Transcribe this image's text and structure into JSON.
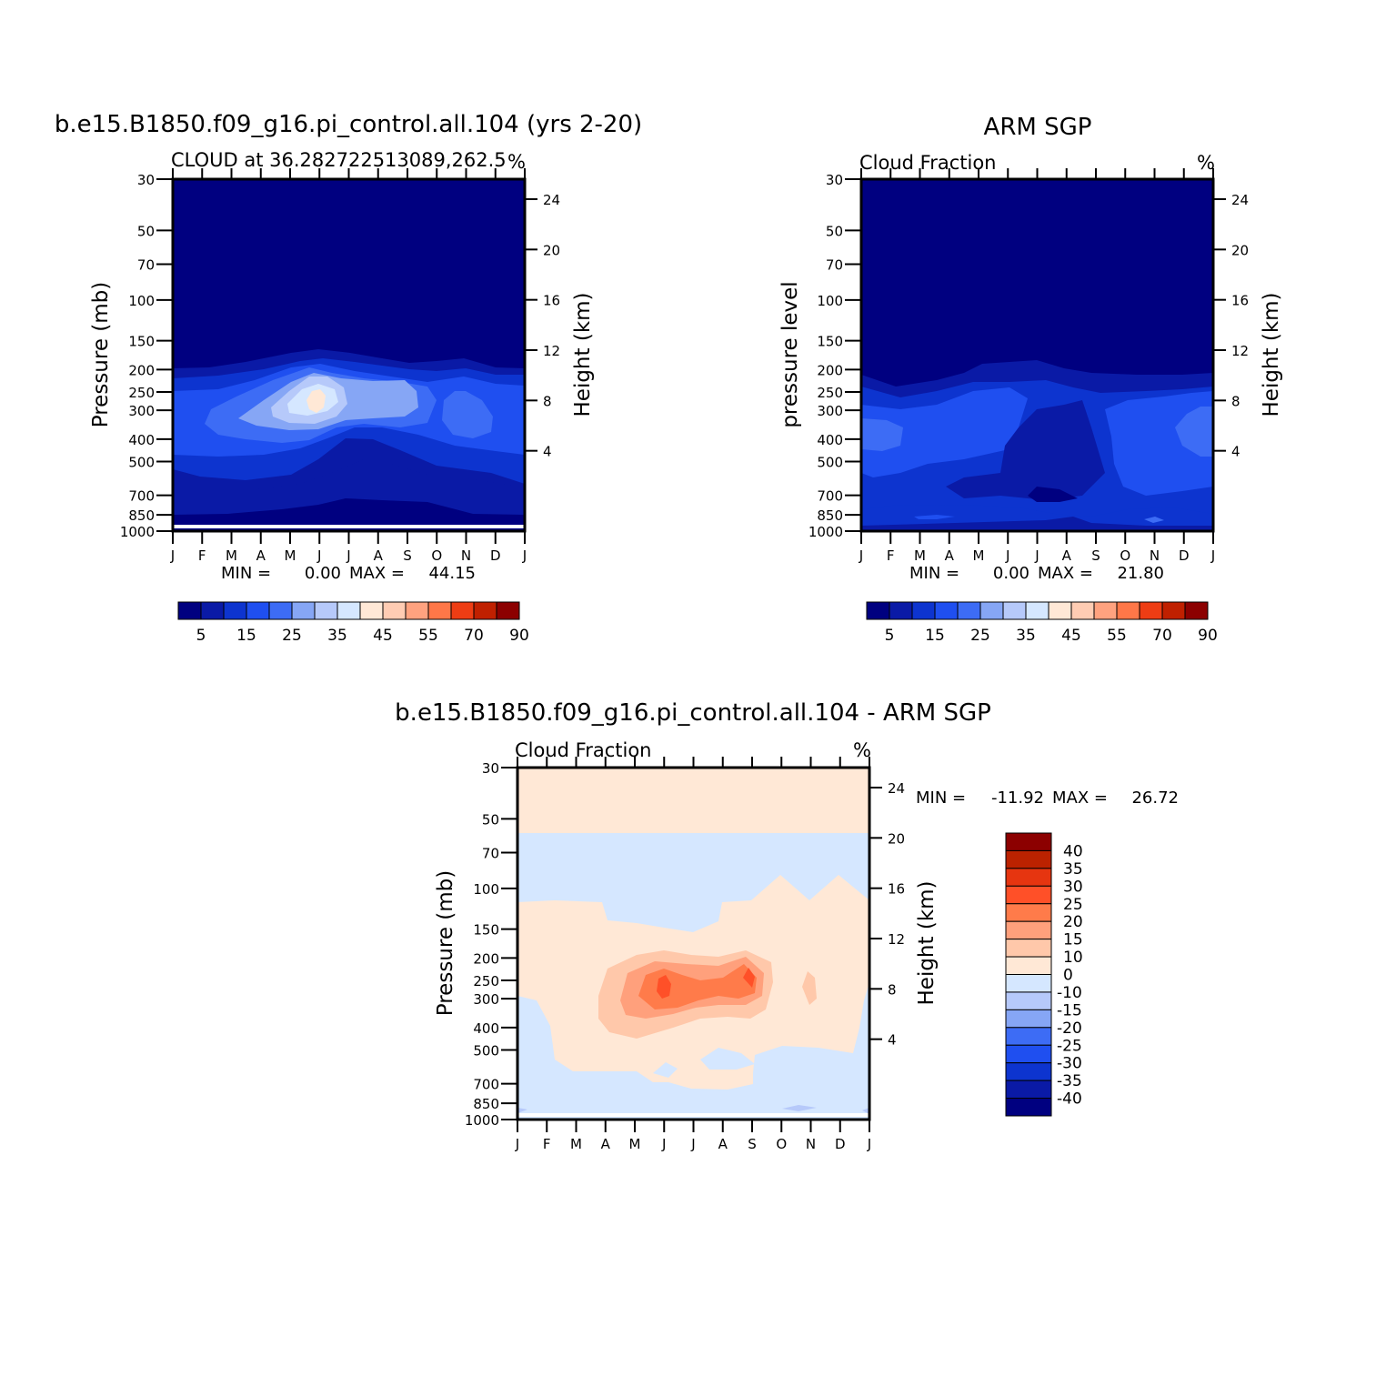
{
  "colors": {
    "model_levels": [
      "#000080",
      "#0a1aa6",
      "#0d34cf",
      "#1f4ff0",
      "#3d6cf5",
      "#86a6f5",
      "#b6c9fa",
      "#d5e7ff",
      "#ffe8d6",
      "#ffccb3",
      "#ffa27f",
      "#ff7748",
      "#ee3d14",
      "#c02000",
      "#8c0000"
    ],
    "diff_levels": [
      "#8c0000",
      "#bb2200",
      "#e63510",
      "#ff5028",
      "#ff7b4a",
      "#ffa07c",
      "#ffc8aa",
      "#ffe8d6",
      "#d5e7ff",
      "#b6c9fa",
      "#86a6f5",
      "#3d6cf5",
      "#1f4ff0",
      "#0d34cf",
      "#0a1aa6",
      "#000080"
    ]
  },
  "chart_data": [
    {
      "type": "contour",
      "title": "b.e15.B1850.f09_g16.pi_control.all.104 (yrs 2-20)",
      "subtitle_left": "CLOUD at 36.282722513089,262.5",
      "subtitle_right": "%",
      "ylabel": "Pressure (mb)",
      "ylabel_right": "Height (km)",
      "x_ticks": [
        "J",
        "F",
        "M",
        "A",
        "M",
        "J",
        "J",
        "A",
        "S",
        "O",
        "N",
        "D",
        "J"
      ],
      "y_ticks": [
        "30",
        "50",
        "70",
        "100",
        "150",
        "200",
        "250",
        "300",
        "400",
        "500",
        "700",
        "850",
        "1000"
      ],
      "y_ticks_right": [
        "24",
        "20",
        "16",
        "12",
        "8",
        "4"
      ],
      "stats": {
        "min_label": "MIN =",
        "min": "0.00",
        "max_label": "MAX =",
        "max": "44.15"
      },
      "colorbar_labels": [
        "5",
        "15",
        "25",
        "35",
        "45",
        "55",
        "70",
        "90"
      ],
      "levels_shown": {
        "background": "<5",
        "peak": "40-45",
        "peak_month": "J",
        "peak_pressure_mb": 250
      }
    },
    {
      "type": "contour",
      "title": "ARM SGP",
      "subtitle_left": "Cloud Fraction",
      "subtitle_right": "%",
      "ylabel": "pressure level",
      "ylabel_right": "Height (km)",
      "x_ticks": [
        "J",
        "F",
        "M",
        "A",
        "M",
        "J",
        "J",
        "A",
        "S",
        "O",
        "N",
        "D",
        "J"
      ],
      "y_ticks": [
        "30",
        "50",
        "70",
        "100",
        "150",
        "200",
        "250",
        "300",
        "400",
        "500",
        "700",
        "850",
        "1000"
      ],
      "y_ticks_right": [
        "24",
        "20",
        "16",
        "12",
        "8",
        "4"
      ],
      "stats": {
        "min_label": "MIN =",
        "min": "0.00",
        "max_label": "MAX =",
        "max": "21.80"
      },
      "colorbar_labels": [
        "5",
        "15",
        "25",
        "35",
        "45",
        "55",
        "70",
        "90"
      ]
    },
    {
      "type": "contour",
      "title": "b.e15.B1850.f09_g16.pi_control.all.104 - ARM SGP",
      "subtitle_left": "Cloud Fraction",
      "subtitle_right": "%",
      "ylabel": "Pressure (mb)",
      "ylabel_right": "Height (km)",
      "x_ticks": [
        "J",
        "F",
        "M",
        "A",
        "M",
        "J",
        "J",
        "A",
        "S",
        "O",
        "N",
        "D",
        "J"
      ],
      "y_ticks": [
        "30",
        "50",
        "70",
        "100",
        "150",
        "200",
        "250",
        "300",
        "400",
        "500",
        "700",
        "850",
        "1000"
      ],
      "y_ticks_right": [
        "24",
        "20",
        "16",
        "12",
        "8",
        "4"
      ],
      "stats": {
        "min_label": "MIN =",
        "min": "-11.92",
        "max_label": "MAX =",
        "max": "26.72"
      },
      "colorbar_labels": [
        "40",
        "35",
        "30",
        "25",
        "20",
        "15",
        "10",
        "0",
        "-10",
        "-15",
        "-20",
        "-25",
        "-30",
        "-35",
        "-40"
      ]
    }
  ]
}
